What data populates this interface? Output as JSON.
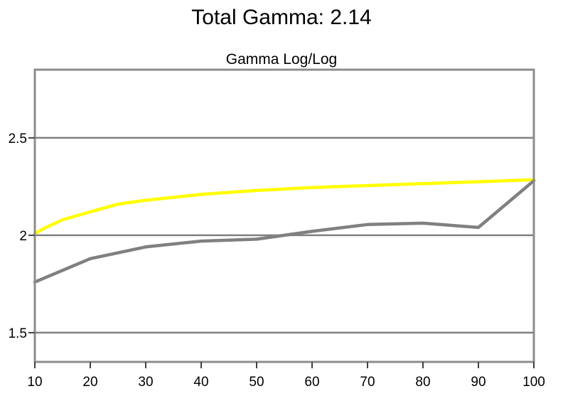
{
  "title": "Total Gamma: 2.14",
  "chart_data": {
    "type": "line",
    "title": "Gamma Log/Log",
    "xlabel": "",
    "ylabel": "",
    "x": [
      10,
      20,
      30,
      40,
      50,
      60,
      70,
      80,
      90,
      100
    ],
    "xlim": [
      10,
      100
    ],
    "ylim": [
      1.35,
      2.85
    ],
    "x_ticks": [
      "10",
      "20",
      "30",
      "40",
      "50",
      "60",
      "70",
      "80",
      "90",
      "100"
    ],
    "y_ticks": [
      {
        "value": 1.5,
        "label": "1.5"
      },
      {
        "value": 2.0,
        "label": "2"
      },
      {
        "value": 2.5,
        "label": "2.5"
      }
    ],
    "grid": true,
    "legend": "none",
    "series": [
      {
        "color": "#ffff00",
        "x": [
          10,
          12,
          15,
          20,
          25,
          30,
          40,
          50,
          60,
          70,
          80,
          90,
          100
        ],
        "values": [
          2.01,
          2.04,
          2.08,
          2.12,
          2.16,
          2.18,
          2.21,
          2.23,
          2.245,
          2.255,
          2.265,
          2.275,
          2.285
        ]
      },
      {
        "color": "#808080",
        "x": [
          10,
          20,
          30,
          40,
          50,
          60,
          70,
          80,
          90,
          100
        ],
        "values": [
          1.76,
          1.88,
          1.94,
          1.97,
          1.98,
          2.02,
          2.055,
          2.062,
          2.04,
          2.28
        ]
      }
    ]
  }
}
